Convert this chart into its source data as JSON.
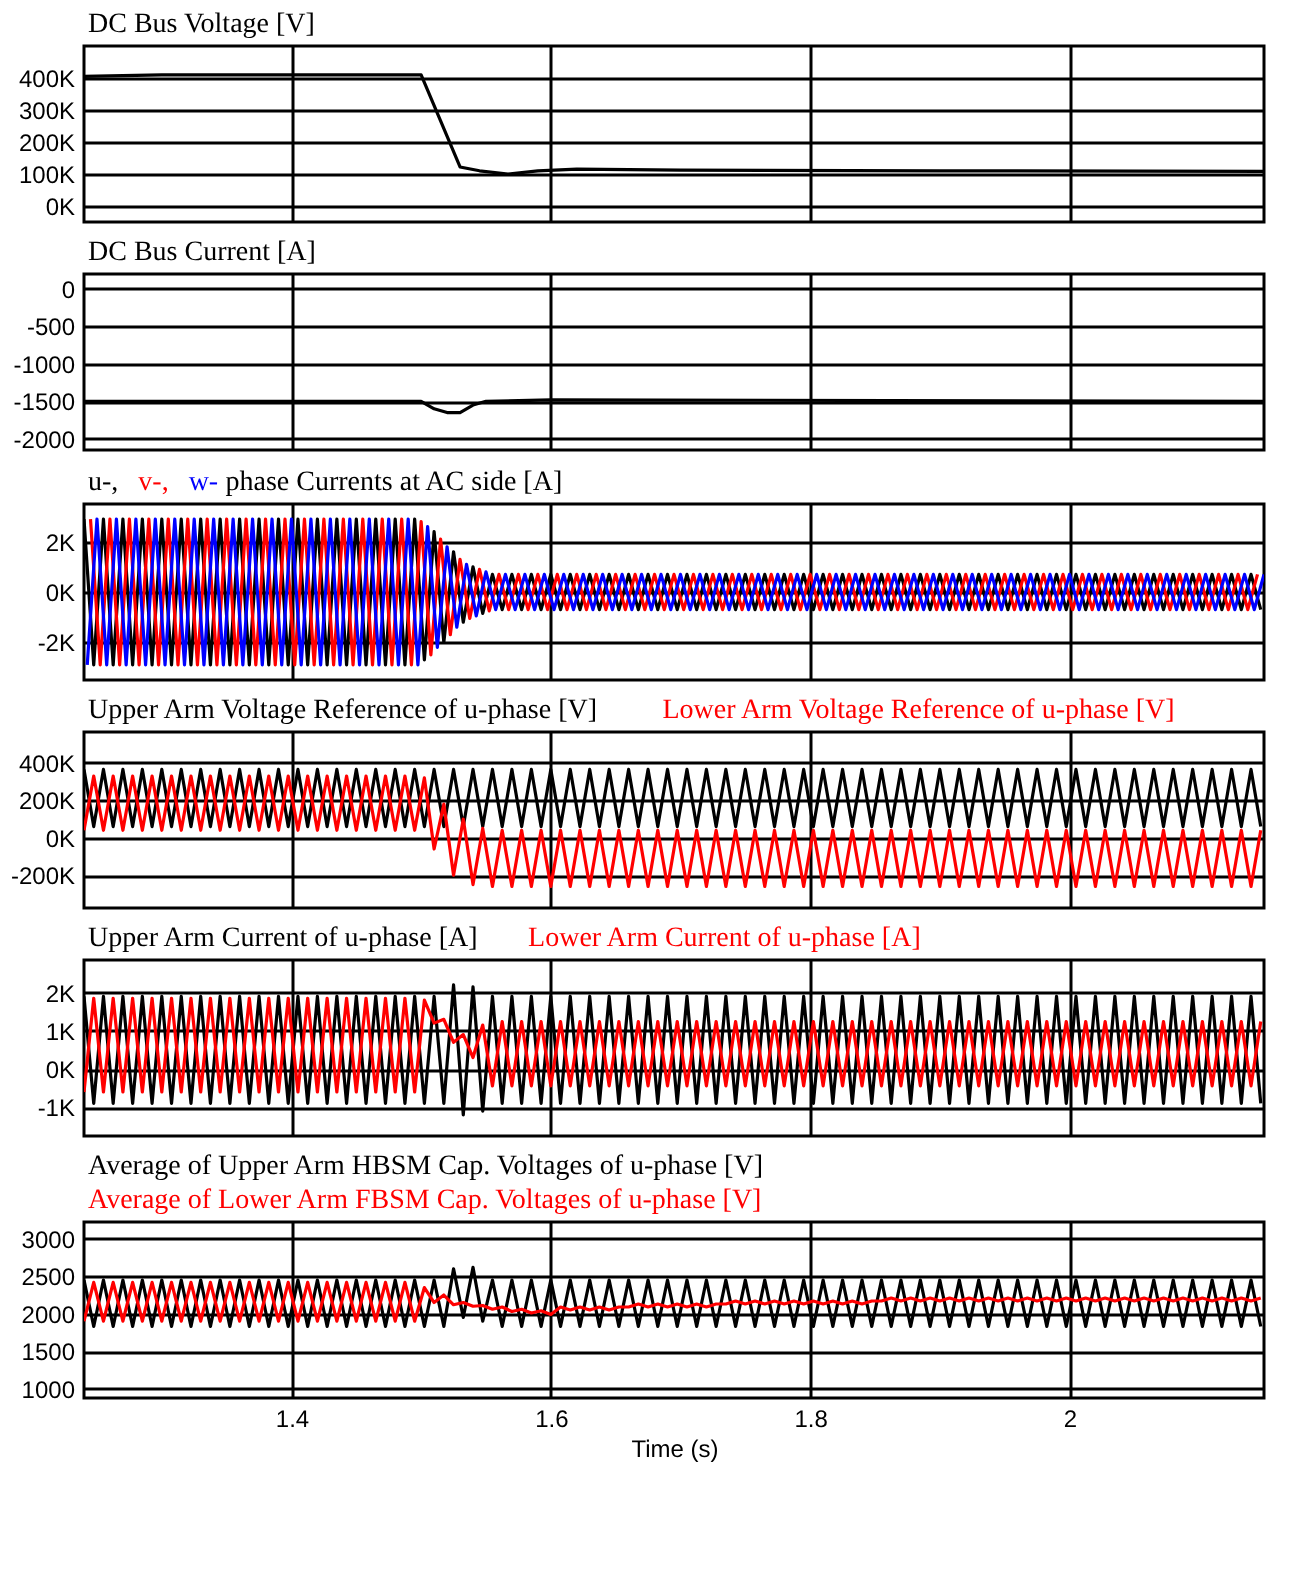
{
  "chart_data": [
    {
      "type": "line",
      "title": "DC Bus Voltage [V]",
      "xlim": [
        1.24,
        2.15
      ],
      "xticks": [
        1.4,
        1.6,
        1.8,
        2
      ],
      "ylim": [
        -50000,
        500000
      ],
      "yticks": [
        {
          "value": 0,
          "label": "0K"
        },
        {
          "value": 100000,
          "label": "100K"
        },
        {
          "value": 200000,
          "label": "200K"
        },
        {
          "value": 300000,
          "label": "300K"
        },
        {
          "value": 400000,
          "label": "400K"
        }
      ],
      "grid": true,
      "tick_labels": "y",
      "series": [
        {
          "color": "#000000",
          "x": [
            1.24,
            1.3,
            1.4,
            1.5,
            1.53,
            1.545,
            1.567,
            1.59,
            1.62,
            1.7,
            1.9,
            2.15
          ],
          "values": [
            405000,
            410000,
            410000,
            410000,
            122000,
            110000,
            100000,
            110000,
            115000,
            112000,
            110000,
            108000
          ]
        }
      ]
    },
    {
      "type": "line",
      "title": "DC Bus Current [A]",
      "xlim": [
        1.24,
        2.15
      ],
      "xticks": [
        1.4,
        1.6,
        1.8,
        2
      ],
      "ylim": [
        -2150,
        200
      ],
      "yticks": [
        0,
        -500,
        -1000,
        -1500,
        -2000
      ],
      "grid": true,
      "tick_labels": "y",
      "series": [
        {
          "color": "#000000",
          "x": [
            1.24,
            1.5,
            1.51,
            1.52,
            1.53,
            1.54,
            1.55,
            1.6,
            2.15
          ],
          "values": [
            -1500,
            -1500,
            -1600,
            -1650,
            -1650,
            -1550,
            -1500,
            -1480,
            -1500
          ]
        }
      ]
    },
    {
      "type": "line",
      "title": "phase Currents at AC side [A]",
      "xlim": [
        1.24,
        2.15
      ],
      "xticks": [
        1.4,
        1.6,
        1.8,
        2
      ],
      "ylim": [
        -3500,
        3500
      ],
      "yticks": [
        {
          "value": -2000,
          "label": "-2K"
        },
        {
          "value": 0,
          "label": "0K"
        },
        {
          "value": 2000,
          "label": "2K"
        }
      ],
      "grid": true,
      "tick_labels": "y",
      "x": [
        1.24,
        1.2475,
        1.255,
        1.2625,
        1.27,
        1.2775,
        1.285,
        1.2925,
        1.3,
        1.3075,
        1.315,
        1.3225,
        1.33,
        1.3375,
        1.345,
        1.3525,
        1.36,
        1.3675,
        1.375,
        1.3825,
        1.39,
        1.3975,
        1.405,
        1.4125,
        1.42,
        1.4275,
        1.435,
        1.4425,
        1.45,
        1.4575,
        1.465,
        1.4725,
        1.48,
        1.4875,
        1.495,
        1.5025,
        1.51,
        1.5175,
        1.525,
        1.5325,
        1.54,
        1.5475,
        1.555,
        1.5625,
        1.57,
        1.5775,
        1.585,
        1.5925,
        1.6,
        1.6075,
        1.615,
        1.6225,
        1.63,
        1.6375,
        1.645,
        1.6525,
        1.66,
        1.6675,
        1.675,
        1.6825,
        1.69,
        1.6975,
        1.705,
        1.7125,
        1.72,
        1.7275,
        1.735,
        1.7425,
        1.75,
        1.7575,
        1.765,
        1.7725,
        1.78,
        1.7875,
        1.795,
        1.8025,
        1.81,
        1.8175,
        1.825,
        1.8325,
        1.84,
        1.8475,
        1.855,
        1.8625,
        1.87,
        1.8775,
        1.885,
        1.8925,
        1.9,
        1.9075,
        1.915,
        1.9225,
        1.93,
        1.9375,
        1.945,
        1.9525,
        1.96,
        1.9675,
        1.975,
        1.9825,
        1.99,
        1.9975,
        2.005,
        2.0125,
        2.02,
        2.0275,
        2.035,
        2.0425,
        2.05,
        2.0575,
        2.065,
        2.0725,
        2.08,
        2.0875,
        2.095,
        2.1025,
        2.11,
        2.1175,
        2.125,
        2.1325,
        2.14,
        2.1475
      ],
      "series": [
        {
          "name": "u-,",
          "color": "#000000",
          "values": [
            2900,
            -2900,
            2900,
            -2900,
            2900,
            -2900,
            2900,
            -2900,
            2900,
            -2900,
            2900,
            -2900,
            2900,
            -2900,
            2900,
            -2900,
            2900,
            -2900,
            2900,
            -2900,
            2900,
            -2900,
            2900,
            -2900,
            2900,
            -2900,
            2900,
            -2900,
            2900,
            -2900,
            2900,
            -2900,
            2900,
            -2900,
            2900,
            -2700,
            2400,
            -2000,
            1600,
            -1200,
            1000,
            -850,
            700,
            -700,
            700,
            -700,
            700,
            -700,
            700,
            -700,
            700,
            -700,
            700,
            -700,
            700,
            -700,
            700,
            -700,
            700,
            -700,
            700,
            -700,
            700,
            -700,
            700,
            -700,
            700,
            -700,
            700,
            -700,
            700,
            -700,
            700,
            -700,
            700,
            -700,
            700,
            -700,
            700,
            -700,
            700,
            -700,
            700,
            -700,
            700,
            -700,
            700,
            -700,
            700,
            -700,
            700,
            -700,
            700,
            -700,
            700,
            -700,
            700,
            -700,
            700,
            -700,
            700,
            -700,
            700,
            -700,
            700,
            -700,
            700,
            -700,
            700,
            -700,
            700,
            -700,
            700,
            -700,
            700,
            -700,
            700,
            -700,
            700,
            -700,
            700,
            -700
          ]
        },
        {
          "name": "v-,",
          "color": "#ff0000",
          "x": [
            1.245,
            1.2525,
            1.26,
            1.2675,
            1.275,
            1.2825,
            1.29,
            1.2975,
            1.305,
            1.3125,
            1.32,
            1.3275,
            1.335,
            1.3425,
            1.35,
            1.3575,
            1.365,
            1.3725,
            1.38,
            1.3875,
            1.395,
            1.4025,
            1.41,
            1.4175,
            1.425,
            1.4325,
            1.44,
            1.4475,
            1.455,
            1.4625,
            1.47,
            1.4775,
            1.485,
            1.4925,
            1.5,
            1.5075,
            1.515,
            1.5225,
            1.53,
            1.5375,
            1.545,
            1.5525,
            1.56,
            1.5675,
            1.575,
            1.5825,
            1.59,
            1.5975,
            1.605,
            1.6125,
            1.62,
            1.6275,
            1.635,
            1.6425,
            1.65,
            1.6575,
            1.665,
            1.6725,
            1.68,
            1.6875,
            1.695,
            1.7025,
            1.71,
            1.7175,
            1.725,
            1.7325,
            1.74,
            1.7475,
            1.755,
            1.7625,
            1.77,
            1.7775,
            1.785,
            1.7925,
            1.8,
            1.8075,
            1.815,
            1.8225,
            1.83,
            1.8375,
            1.845,
            1.8525,
            1.86,
            1.8675,
            1.875,
            1.8825,
            1.89,
            1.8975,
            1.905,
            1.9125,
            1.92,
            1.9275,
            1.935,
            1.9425,
            1.95,
            1.9575,
            1.965,
            1.9725,
            1.98,
            1.9875,
            1.995,
            2.0025,
            2.01,
            2.0175,
            2.025,
            2.0325,
            2.04,
            2.0475,
            2.055,
            2.0625,
            2.07,
            2.0775,
            2.085,
            2.0925,
            2.1,
            2.1075,
            2.115,
            2.1225,
            2.13,
            2.1375,
            2.145
          ],
          "values": [
            2900,
            -2900,
            2900,
            -2900,
            2900,
            -2900,
            2900,
            -2900,
            2900,
            -2900,
            2900,
            -2900,
            2900,
            -2900,
            2900,
            -2900,
            2900,
            -2900,
            2900,
            -2900,
            2900,
            -2900,
            2900,
            -2900,
            2900,
            -2900,
            2900,
            -2900,
            2900,
            -2900,
            2900,
            -2900,
            2900,
            -2900,
            2800,
            -2500,
            2100,
            -1700,
            1300,
            -1050,
            900,
            -750,
            700,
            -700,
            700,
            -700,
            700,
            -700,
            700,
            -700,
            700,
            -700,
            700,
            -700,
            700,
            -700,
            700,
            -700,
            700,
            -700,
            700,
            -700,
            700,
            -700,
            700,
            -700,
            700,
            -700,
            700,
            -700,
            700,
            -700,
            700,
            -700,
            700,
            -700,
            700,
            -700,
            700,
            -700,
            700,
            -700,
            700,
            -700,
            700,
            -700,
            700,
            -700,
            700,
            -700,
            700,
            -700,
            700,
            -700,
            700,
            -700,
            700,
            -700,
            700,
            -700,
            700,
            -700,
            700,
            -700,
            700,
            -700,
            700,
            -700,
            700,
            -700,
            700,
            -700,
            700,
            -700,
            700,
            -700,
            700,
            -700,
            700,
            -700,
            700
          ]
        },
        {
          "name": "w-",
          "color": "#0000ff",
          "x": [
            1.2425,
            1.25,
            1.2575,
            1.265,
            1.2725,
            1.28,
            1.2875,
            1.295,
            1.3025,
            1.31,
            1.3175,
            1.325,
            1.3325,
            1.34,
            1.3475,
            1.355,
            1.3625,
            1.37,
            1.3775,
            1.385,
            1.3925,
            1.4,
            1.4075,
            1.415,
            1.4225,
            1.43,
            1.4375,
            1.445,
            1.4525,
            1.46,
            1.4675,
            1.475,
            1.4825,
            1.49,
            1.4975,
            1.505,
            1.5125,
            1.52,
            1.5275,
            1.535,
            1.5425,
            1.55,
            1.5575,
            1.565,
            1.5725,
            1.58,
            1.5875,
            1.595,
            1.6025,
            1.61,
            1.6175,
            1.625,
            1.6325,
            1.64,
            1.6475,
            1.655,
            1.6625,
            1.67,
            1.6775,
            1.685,
            1.6925,
            1.7,
            1.7075,
            1.715,
            1.7225,
            1.73,
            1.7375,
            1.745,
            1.7525,
            1.76,
            1.7675,
            1.775,
            1.7825,
            1.79,
            1.7975,
            1.805,
            1.8125,
            1.82,
            1.8275,
            1.835,
            1.8425,
            1.85,
            1.8575,
            1.865,
            1.8725,
            1.88,
            1.8875,
            1.895,
            1.9025,
            1.91,
            1.9175,
            1.925,
            1.9325,
            1.94,
            1.9475,
            1.955,
            1.9625,
            1.97,
            1.9775,
            1.985,
            1.9925,
            2,
            2.0075,
            2.015,
            2.0225,
            2.03,
            2.0375,
            2.045,
            2.0525,
            2.06,
            2.0675,
            2.075,
            2.0825,
            2.09,
            2.0975,
            2.105,
            2.1125,
            2.12,
            2.1275,
            2.135,
            2.1425,
            2.15
          ],
          "values": [
            -2900,
            2900,
            -2900,
            2900,
            -2900,
            2900,
            -2900,
            2900,
            -2900,
            2900,
            -2900,
            2900,
            -2900,
            2900,
            -2900,
            2900,
            -2900,
            2900,
            -2900,
            2900,
            -2900,
            2900,
            -2900,
            2900,
            -2900,
            2900,
            -2900,
            2900,
            -2900,
            2900,
            -2900,
            2900,
            -2900,
            2900,
            -2900,
            2600,
            -2200,
            1800,
            -1400,
            1100,
            -950,
            800,
            -700,
            700,
            -700,
            700,
            -700,
            700,
            -700,
            700,
            -700,
            700,
            -700,
            700,
            -700,
            700,
            -700,
            700,
            -700,
            700,
            -700,
            700,
            -700,
            700,
            -700,
            700,
            -700,
            700,
            -700,
            700,
            -700,
            700,
            -700,
            700,
            -700,
            700,
            -700,
            700,
            -700,
            700,
            -700,
            700,
            -700,
            700,
            -700,
            700,
            -700,
            700,
            -700,
            700,
            -700,
            700,
            -700,
            700,
            -700,
            700,
            -700,
            700,
            -700,
            700,
            -700,
            700,
            -700,
            700,
            -700,
            700,
            -700,
            700,
            -700,
            700,
            -700,
            700,
            -700,
            700,
            -700,
            700,
            -700,
            700,
            -700,
            700,
            -700,
            700
          ]
        }
      ]
    },
    {
      "type": "line",
      "xlim": [
        1.24,
        2.15
      ],
      "xticks": [
        1.4,
        1.6,
        1.8,
        2
      ],
      "ylim": [
        -375000,
        565000
      ],
      "yticks": [
        {
          "value": -200000,
          "label": "-200K"
        },
        {
          "value": 0,
          "label": "0K"
        },
        {
          "value": 200000,
          "label": "200K"
        },
        {
          "value": 400000,
          "label": "400K"
        }
      ],
      "grid": true,
      "tick_labels": "y",
      "x": [
        1.24,
        1.2475,
        1.255,
        1.2625,
        1.27,
        1.2775,
        1.285,
        1.2925,
        1.3,
        1.3075,
        1.315,
        1.3225,
        1.33,
        1.3375,
        1.345,
        1.3525,
        1.36,
        1.3675,
        1.375,
        1.3825,
        1.39,
        1.3975,
        1.405,
        1.4125,
        1.42,
        1.4275,
        1.435,
        1.4425,
        1.45,
        1.4575,
        1.465,
        1.4725,
        1.48,
        1.4875,
        1.495,
        1.5025,
        1.51,
        1.5175,
        1.525,
        1.5325,
        1.54,
        1.5475,
        1.555,
        1.5625,
        1.57,
        1.5775,
        1.585,
        1.5925,
        1.6,
        1.6075,
        1.615,
        1.6225,
        1.63,
        1.6375,
        1.645,
        1.6525,
        1.66,
        1.6675,
        1.675,
        1.6825,
        1.69,
        1.6975,
        1.705,
        1.7125,
        1.72,
        1.7275,
        1.735,
        1.7425,
        1.75,
        1.7575,
        1.765,
        1.7725,
        1.78,
        1.7875,
        1.795,
        1.8025,
        1.81,
        1.8175,
        1.825,
        1.8325,
        1.84,
        1.8475,
        1.855,
        1.8625,
        1.87,
        1.8775,
        1.885,
        1.8925,
        1.9,
        1.9075,
        1.915,
        1.9225,
        1.93,
        1.9375,
        1.945,
        1.9525,
        1.96,
        1.9675,
        1.975,
        1.9825,
        1.99,
        1.9975,
        2.005,
        2.0125,
        2.02,
        2.0275,
        2.035,
        2.0425,
        2.05,
        2.0575,
        2.065,
        2.0725,
        2.08,
        2.0875,
        2.095,
        2.1025,
        2.11,
        2.1175,
        2.125,
        2.1325,
        2.14,
        2.1475
      ],
      "series": [
        {
          "name": "Upper Arm Voltage Reference of u-phase [V]",
          "color": "#000000",
          "values": [
            365000,
            60000,
            365000,
            60000,
            365000,
            60000,
            365000,
            60000,
            365000,
            60000,
            365000,
            60000,
            365000,
            60000,
            365000,
            60000,
            365000,
            60000,
            365000,
            60000,
            365000,
            60000,
            365000,
            60000,
            365000,
            60000,
            365000,
            60000,
            365000,
            60000,
            365000,
            60000,
            365000,
            60000,
            365000,
            60000,
            365000,
            60000,
            365000,
            60000,
            365000,
            60000,
            365000,
            60000,
            365000,
            60000,
            365000,
            60000,
            365000,
            60000,
            365000,
            60000,
            365000,
            60000,
            365000,
            60000,
            365000,
            60000,
            365000,
            60000,
            365000,
            60000,
            365000,
            60000,
            365000,
            60000,
            365000,
            60000,
            365000,
            60000,
            365000,
            60000,
            365000,
            60000,
            365000,
            60000,
            365000,
            60000,
            365000,
            60000,
            365000,
            60000,
            365000,
            60000,
            365000,
            60000,
            365000,
            60000,
            365000,
            60000,
            365000,
            60000,
            365000,
            60000,
            365000,
            60000,
            365000,
            60000,
            365000,
            60000,
            365000,
            60000,
            365000,
            60000,
            365000,
            60000,
            365000,
            60000,
            365000,
            60000,
            365000,
            60000,
            365000,
            60000,
            365000,
            60000,
            365000,
            60000,
            365000,
            60000,
            365000,
            60000
          ]
        },
        {
          "name": "Lower Arm Voltage Reference of u-phase [V]",
          "color": "#ff0000",
          "values": [
            40000,
            330000,
            40000,
            330000,
            40000,
            330000,
            40000,
            330000,
            40000,
            330000,
            40000,
            330000,
            40000,
            330000,
            40000,
            330000,
            40000,
            330000,
            40000,
            330000,
            40000,
            330000,
            40000,
            330000,
            40000,
            330000,
            40000,
            330000,
            40000,
            330000,
            40000,
            330000,
            40000,
            330000,
            40000,
            320000,
            -60000,
            180000,
            -200000,
            100000,
            -250000,
            50000,
            -260000,
            40000,
            -260000,
            40000,
            -260000,
            40000,
            -260000,
            40000,
            -260000,
            40000,
            -260000,
            40000,
            -260000,
            40000,
            -260000,
            40000,
            -260000,
            40000,
            -260000,
            40000,
            -260000,
            40000,
            -260000,
            40000,
            -260000,
            40000,
            -260000,
            40000,
            -260000,
            40000,
            -260000,
            40000,
            -260000,
            40000,
            -260000,
            40000,
            -260000,
            40000,
            -260000,
            40000,
            -260000,
            40000,
            -260000,
            40000,
            -260000,
            40000,
            -260000,
            40000,
            -260000,
            40000,
            -260000,
            40000,
            -260000,
            40000,
            -260000,
            40000,
            -260000,
            40000,
            -260000,
            40000,
            -260000,
            40000,
            -260000,
            40000,
            -260000,
            40000,
            -260000,
            40000,
            -260000,
            40000,
            -260000,
            40000,
            -260000,
            40000,
            -260000,
            40000,
            -260000,
            40000,
            -260000,
            40000
          ]
        }
      ]
    },
    {
      "type": "line",
      "xlim": [
        1.24,
        2.15
      ],
      "xticks": [
        1.4,
        1.6,
        1.8,
        2
      ],
      "ylim": [
        -1750,
        2850
      ],
      "yticks": [
        {
          "value": -1000,
          "label": "-1K"
        },
        {
          "value": 0,
          "label": "0K"
        },
        {
          "value": 1000,
          "label": "1K"
        },
        {
          "value": 2000,
          "label": "2K"
        }
      ],
      "grid": true,
      "tick_labels": "y",
      "x": [
        1.24,
        1.2475,
        1.255,
        1.2625,
        1.27,
        1.2775,
        1.285,
        1.2925,
        1.3,
        1.3075,
        1.315,
        1.3225,
        1.33,
        1.3375,
        1.345,
        1.3525,
        1.36,
        1.3675,
        1.375,
        1.3825,
        1.39,
        1.3975,
        1.405,
        1.4125,
        1.42,
        1.4275,
        1.435,
        1.4425,
        1.45,
        1.4575,
        1.465,
        1.4725,
        1.48,
        1.4875,
        1.495,
        1.5025,
        1.51,
        1.5175,
        1.525,
        1.5325,
        1.54,
        1.5475,
        1.555,
        1.5625,
        1.57,
        1.5775,
        1.585,
        1.5925,
        1.6,
        1.6075,
        1.615,
        1.6225,
        1.63,
        1.6375,
        1.645,
        1.6525,
        1.66,
        1.6675,
        1.675,
        1.6825,
        1.69,
        1.6975,
        1.705,
        1.7125,
        1.72,
        1.7275,
        1.735,
        1.7425,
        1.75,
        1.7575,
        1.765,
        1.7725,
        1.78,
        1.7875,
        1.795,
        1.8025,
        1.81,
        1.8175,
        1.825,
        1.8325,
        1.84,
        1.8475,
        1.855,
        1.8625,
        1.87,
        1.8775,
        1.885,
        1.8925,
        1.9,
        1.9075,
        1.915,
        1.9225,
        1.93,
        1.9375,
        1.945,
        1.9525,
        1.96,
        1.9675,
        1.975,
        1.9825,
        1.99,
        1.9975,
        2.005,
        2.0125,
        2.02,
        2.0275,
        2.035,
        2.0425,
        2.05,
        2.0575,
        2.065,
        2.0725,
        2.08,
        2.0875,
        2.095,
        2.1025,
        2.11,
        2.1175,
        2.125,
        2.1325,
        2.14,
        2.1475
      ],
      "series": [
        {
          "name": "Upper Arm Current of u-phase [A]",
          "color": "#000000",
          "values": [
            1900,
            -900,
            1900,
            -900,
            1900,
            -900,
            1900,
            -900,
            1900,
            -900,
            1900,
            -900,
            1900,
            -900,
            1900,
            -900,
            1900,
            -900,
            1900,
            -900,
            1900,
            -900,
            1900,
            -900,
            1900,
            -900,
            1900,
            -900,
            1900,
            -900,
            1900,
            -900,
            1900,
            -900,
            1900,
            -900,
            1900,
            -900,
            2200,
            -1200,
            2150,
            -1100,
            1900,
            -900,
            1900,
            -900,
            1900,
            -900,
            1900,
            -900,
            1900,
            -900,
            1900,
            -900,
            1900,
            -900,
            1900,
            -900,
            1900,
            -900,
            1900,
            -900,
            1900,
            -900,
            1900,
            -900,
            1900,
            -900,
            1900,
            -900,
            1900,
            -900,
            1900,
            -900,
            1900,
            -900,
            1900,
            -900,
            1900,
            -900,
            1900,
            -900,
            1900,
            -900,
            1900,
            -900,
            1900,
            -900,
            1900,
            -900,
            1900,
            -900,
            1900,
            -900,
            1900,
            -900,
            1900,
            -900,
            1900,
            -900,
            1900,
            -900,
            1900,
            -900,
            1900,
            -900,
            1900,
            -900,
            1900,
            -900,
            1900,
            -900,
            1900,
            -900,
            1900,
            -900,
            1900,
            -900,
            1900,
            -900,
            1900,
            -900
          ]
        },
        {
          "name": "Lower Arm Current of u-phase [A]",
          "color": "#ff0000",
          "values": [
            -600,
            1850,
            -600,
            1850,
            -600,
            1850,
            -600,
            1850,
            -600,
            1850,
            -600,
            1850,
            -600,
            1850,
            -600,
            1850,
            -600,
            1850,
            -600,
            1850,
            -600,
            1850,
            -600,
            1850,
            -600,
            1850,
            -600,
            1850,
            -600,
            1850,
            -600,
            1850,
            -600,
            1850,
            -600,
            1800,
            1200,
            1300,
            700,
            900,
            300,
            1150,
            -440,
            1240,
            -440,
            1240,
            -440,
            1240,
            -440,
            1240,
            -440,
            1240,
            -440,
            1240,
            -440,
            1240,
            -440,
            1240,
            -440,
            1240,
            -440,
            1240,
            -440,
            1240,
            -440,
            1240,
            -440,
            1240,
            -440,
            1240,
            -440,
            1240,
            -440,
            1240,
            -440,
            1240,
            -440,
            1240,
            -440,
            1240,
            -440,
            1240,
            -440,
            1240,
            -440,
            1240,
            -440,
            1240,
            -440,
            1240,
            -440,
            1240,
            -440,
            1240,
            -440,
            1240,
            -440,
            1240,
            -440,
            1240,
            -440,
            1240,
            -440,
            1240,
            -440,
            1240,
            -440,
            1240,
            -440,
            1240,
            -440,
            1240,
            -440,
            1240,
            -440,
            1240,
            -440,
            1240,
            -440,
            1240,
            -440,
            1240
          ]
        }
      ]
    },
    {
      "type": "line",
      "xlim": [
        1.24,
        2.15
      ],
      "xticks": [
        1.4,
        1.6,
        1.8,
        2
      ],
      "xlabel": "Time (s)",
      "ylim": [
        875,
        3225
      ],
      "yticks": [
        1000,
        1500,
        2000,
        2500,
        3000
      ],
      "grid": true,
      "x": [
        1.24,
        1.2475,
        1.255,
        1.2625,
        1.27,
        1.2775,
        1.285,
        1.2925,
        1.3,
        1.3075,
        1.315,
        1.3225,
        1.33,
        1.3375,
        1.345,
        1.3525,
        1.36,
        1.3675,
        1.375,
        1.3825,
        1.39,
        1.3975,
        1.405,
        1.4125,
        1.42,
        1.4275,
        1.435,
        1.4425,
        1.45,
        1.4575,
        1.465,
        1.4725,
        1.48,
        1.4875,
        1.495,
        1.5025,
        1.51,
        1.5175,
        1.525,
        1.5325,
        1.54,
        1.5475,
        1.555,
        1.5625,
        1.57,
        1.5775,
        1.585,
        1.5925,
        1.6,
        1.6075,
        1.615,
        1.6225,
        1.63,
        1.6375,
        1.645,
        1.6525,
        1.66,
        1.6675,
        1.675,
        1.6825,
        1.69,
        1.6975,
        1.705,
        1.7125,
        1.72,
        1.7275,
        1.735,
        1.7425,
        1.75,
        1.7575,
        1.765,
        1.7725,
        1.78,
        1.7875,
        1.795,
        1.8025,
        1.81,
        1.8175,
        1.825,
        1.8325,
        1.84,
        1.8475,
        1.855,
        1.8625,
        1.87,
        1.8775,
        1.885,
        1.8925,
        1.9,
        1.9075,
        1.915,
        1.9225,
        1.93,
        1.9375,
        1.945,
        1.9525,
        1.96,
        1.9675,
        1.975,
        1.9825,
        1.99,
        1.9975,
        2.005,
        2.0125,
        2.02,
        2.0275,
        2.035,
        2.0425,
        2.05,
        2.0575,
        2.065,
        2.0725,
        2.08,
        2.0875,
        2.095,
        2.1025,
        2.11,
        2.1175,
        2.125,
        2.1325,
        2.14,
        2.1475
      ],
      "series": [
        {
          "name": "Average of Upper Arm HBSM Cap. Voltages of u-phase [V]",
          "color": "#000000",
          "values": [
            2450,
            1830,
            2450,
            1830,
            2450,
            1830,
            2450,
            1830,
            2450,
            1830,
            2450,
            1830,
            2450,
            1830,
            2450,
            1830,
            2450,
            1830,
            2450,
            1830,
            2450,
            1830,
            2450,
            1830,
            2450,
            1830,
            2450,
            1830,
            2450,
            1830,
            2450,
            1830,
            2450,
            1830,
            2450,
            1830,
            2450,
            1830,
            2600,
            1950,
            2620,
            1900,
            2450,
            1830,
            2450,
            1830,
            2450,
            1830,
            2450,
            1830,
            2450,
            1830,
            2450,
            1830,
            2450,
            1830,
            2450,
            1830,
            2450,
            1830,
            2450,
            1830,
            2450,
            1830,
            2450,
            1830,
            2450,
            1830,
            2450,
            1830,
            2450,
            1830,
            2450,
            1830,
            2450,
            1830,
            2450,
            1830,
            2450,
            1830,
            2450,
            1830,
            2450,
            1830,
            2450,
            1830,
            2450,
            1830,
            2450,
            1830,
            2450,
            1830,
            2450,
            1830,
            2450,
            1830,
            2450,
            1830,
            2450,
            1830,
            2450,
            1830,
            2450,
            1830,
            2450,
            1830,
            2450,
            1830,
            2450,
            1830,
            2450,
            1830,
            2450,
            1830,
            2450,
            1830,
            2450,
            1830,
            2450,
            1830,
            2450,
            1830
          ]
        },
        {
          "name": "Average of Lower Arm FBSM Cap. Voltages of u-phase [V]",
          "color": "#ff0000",
          "values": [
            1900,
            2420,
            1900,
            2420,
            1900,
            2420,
            1900,
            2420,
            1900,
            2420,
            1900,
            2420,
            1900,
            2420,
            1900,
            2420,
            1900,
            2420,
            1900,
            2420,
            1900,
            2420,
            1900,
            2420,
            1900,
            2420,
            1900,
            2420,
            1900,
            2420,
            1900,
            2420,
            1900,
            2420,
            1900,
            2350,
            2150,
            2250,
            2120,
            2150,
            2100,
            2110,
            2060,
            2090,
            2030,
            2060,
            2010,
            2040,
            1990,
            2090,
            2050,
            2090,
            2050,
            2090,
            2050,
            2090,
            2090,
            2130,
            2090,
            2130,
            2090,
            2130,
            2090,
            2130,
            2090,
            2130,
            2130,
            2170,
            2130,
            2170,
            2130,
            2170,
            2130,
            2170,
            2130,
            2170,
            2130,
            2170,
            2130,
            2170,
            2130,
            2170,
            2170,
            2210,
            2170,
            2210,
            2170,
            2210,
            2170,
            2210,
            2170,
            2210,
            2170,
            2210,
            2170,
            2210,
            2170,
            2210,
            2170,
            2210,
            2170,
            2210,
            2170,
            2210,
            2170,
            2210,
            2170,
            2210,
            2170,
            2210,
            2170,
            2210,
            2170,
            2210,
            2170,
            2210,
            2170,
            2210,
            2170,
            2210,
            2170,
            2210
          ]
        }
      ]
    }
  ]
}
